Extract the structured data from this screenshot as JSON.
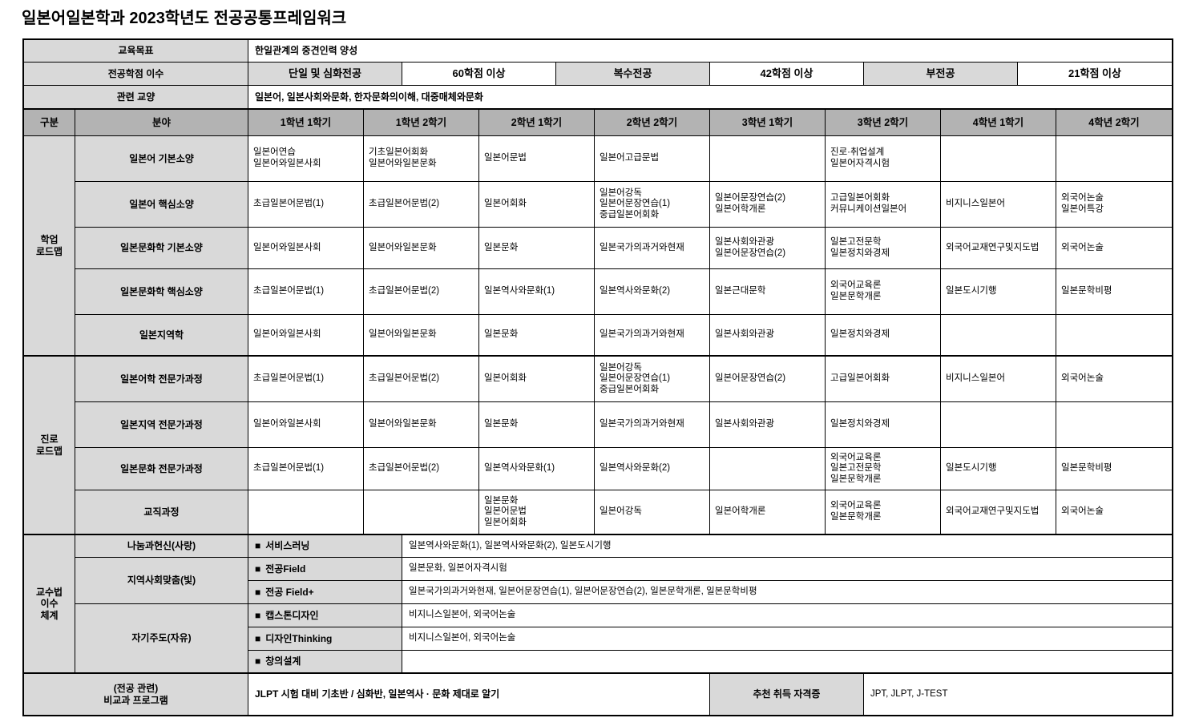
{
  "title": "일본어일본학과 2023학년도 전공공통프레임워크",
  "colors": {
    "header_gray": "#b3b3b3",
    "cell_gray": "#d9d9d9",
    "border": "#000000"
  },
  "icons": {
    "square_bullet": "■"
  },
  "top": {
    "rows": [
      {
        "label": "교육목표",
        "value": "한일관계의 중견인력 양성"
      },
      {
        "label": "전공학점 이수",
        "cells": [
          "단일 및 심화전공",
          "60학점 이상",
          "복수전공",
          "42학점 이상",
          "부전공",
          "21학점 이상"
        ]
      },
      {
        "label": "관련 교양",
        "value": "일본어, 일본사회와문화, 한자문화의이해, 대중매체와문화"
      }
    ]
  },
  "grid": {
    "headers": [
      "구분",
      "분야",
      "1학년 1학기",
      "1학년 2학기",
      "2학년 1학기",
      "2학년 2학기",
      "3학년 1학기",
      "3학년 2학기",
      "4학년 1학기",
      "4학년 2학기"
    ],
    "sections": [
      {
        "name": "학업\n로드맵",
        "rows": [
          {
            "label": "일본어 기본소양",
            "cells": [
              "일본어연습\n일본어와일본사회",
              "기초일본어회화\n일본어와일본문화",
              "일본어문법",
              "일본어고급문법",
              "",
              "진로·취업설계\n일본어자격시험",
              "",
              ""
            ]
          },
          {
            "label": "일본어 핵심소양",
            "cells": [
              "초급일본어문법(1)",
              "초급일본어문법(2)",
              "일본어회화",
              "일본어강독\n일본어문장연습(1)\n중급일본어회화",
              "일본어문장연습(2)\n일본어학개론",
              "고급일본어회화\n커뮤니케이션일본어",
              "비지니스일본어",
              "외국어논술\n일본어특강"
            ]
          },
          {
            "label": "일본문화학 기본소양",
            "cells": [
              "일본어와일본사회",
              "일본어와일본문화",
              "일본문화",
              "일본국가의과거와현재",
              "일본사회와관광\n일본어문장연습(2)",
              "일본고전문학\n일본정치와경제",
              "외국어교재연구및지도법",
              "외국어논술"
            ]
          },
          {
            "label": "일본문화학 핵심소양",
            "cells": [
              "초급일본어문법(1)",
              "초급일본어문법(2)",
              "일본역사와문화(1)",
              "일본역사와문화(2)",
              "일본근대문학",
              "외국어교육론\n일본문학개론",
              "일본도시기행",
              "일본문학비평"
            ]
          },
          {
            "label": "일본지역학",
            "cells": [
              "일본어와일본사회",
              "일본어와일본문화",
              "일본문화",
              "일본국가의과거와현재",
              "일본사회와관광",
              "일본정치와경제",
              "",
              ""
            ]
          }
        ]
      },
      {
        "name": "진로\n로드맵",
        "rows": [
          {
            "label": "일본어학 전문가과정",
            "cells": [
              "초급일본어문법(1)",
              "초급일본어문법(2)",
              "일본어회화",
              "일본어강독\n일본어문장연습(1)\n중급일본어회화",
              "일본어문장연습(2)",
              "고급일본어회화",
              "비지니스일본어",
              "외국어논술"
            ]
          },
          {
            "label": "일본지역 전문가과정",
            "cells": [
              "일본어와일본사회",
              "일본어와일본문화",
              "일본문화",
              "일본국가의과거와현재",
              "일본사회와관광",
              "일본정치와경제",
              "",
              ""
            ]
          },
          {
            "label": "일본문화 전문가과정",
            "cells": [
              "초급일본어문법(1)",
              "초급일본어문법(2)",
              "일본역사와문화(1)",
              "일본역사와문화(2)",
              "",
              "외국어교육론\n일본고전문학\n일본문학개론",
              "일본도시기행",
              "일본문학비평"
            ]
          },
          {
            "label": "교직과정",
            "cells": [
              "",
              "",
              "일본문화\n일본어문법\n일본어회화",
              "일본어강독",
              "일본어학개론",
              "외국어교육론\n일본문학개론",
              "외국어교재연구및지도법",
              "외국어논술"
            ]
          }
        ]
      }
    ]
  },
  "pedagogy": {
    "name": "교수법\n이수\n체계",
    "groups": [
      {
        "label": "나눔과헌신(사랑)",
        "rows": [
          {
            "label": "서비스러닝",
            "content": "일본역사와문화(1), 일본역사와문화(2), 일본도시기행"
          }
        ]
      },
      {
        "label": "지역사회맞춤(빛)",
        "rows": [
          {
            "label": "전공Field",
            "content": "일본문화, 일본어자격시험"
          },
          {
            "label": "전공 Field+",
            "content": "일본국가의과거와현재, 일본어문장연습(1), 일본어문장연습(2), 일본문학개론, 일본문학비평"
          }
        ]
      },
      {
        "label": "자기주도(자유)",
        "rows": [
          {
            "label": "캡스톤디자인",
            "content": "비지니스일본어, 외국어논술"
          },
          {
            "label": "디자인Thinking",
            "content": "비지니스일본어, 외국어논술"
          },
          {
            "label": "창의설계",
            "content": ""
          }
        ]
      }
    ]
  },
  "bottom": {
    "label": "(전공 관련)\n비교과 프로그램",
    "program": "JLPT 시험 대비 기초반 / 심화반, 일본역사 · 문화 제대로 알기",
    "cert_label": "추천 취득 자격증",
    "certs": "JPT, JLPT, J-TEST"
  }
}
